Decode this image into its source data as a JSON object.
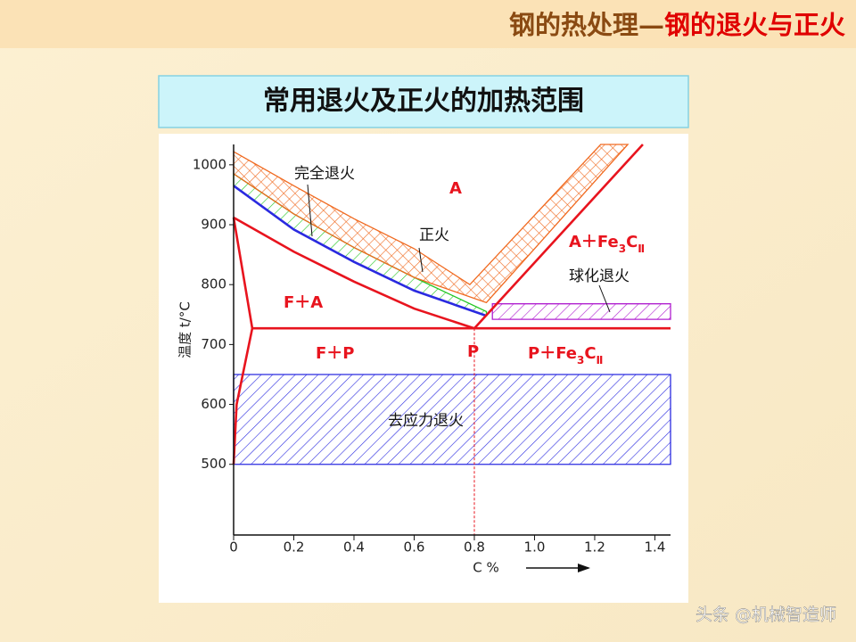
{
  "header": {
    "title_main": "钢的热处理—",
    "title_sub": "钢的退火与正火"
  },
  "slide_title": "常用退火及正火的加热范围",
  "chart_data": {
    "type": "phase-diagram",
    "xlabel": "C %",
    "ylabel": "温度 t/°C",
    "xlim": [
      0,
      1.452
    ],
    "ylim": [
      382,
      1034
    ],
    "xticks": [
      0,
      0.2,
      0.4,
      0.6,
      0.8,
      {
        "value": 1,
        "label": "1.0"
      },
      1.2,
      1.4
    ],
    "yticks": [
      500,
      600,
      700,
      800,
      900,
      1000
    ],
    "regions": [
      {
        "label": "去应力退火",
        "color": "#2a2ae0",
        "pattern": "hatch",
        "x": [
          0,
          1.452,
          1.452,
          0
        ],
        "y": [
          500,
          500,
          650,
          650
        ]
      },
      {
        "label": "球化退火",
        "color": "#b020d0",
        "pattern": "hatch",
        "x": [
          0.86,
          1.452,
          1.452,
          0.86
        ],
        "y": [
          742,
          742,
          768,
          768
        ]
      },
      {
        "label": "完全退火",
        "color": "#22c622",
        "pattern": "hatch",
        "x": [
          0,
          0.2,
          0.4,
          0.6,
          0.84,
          0.84,
          0.6,
          0.4,
          0.2,
          0
        ],
        "y": [
          985,
          918,
          862,
          812,
          755,
          748,
          790,
          838,
          892,
          965
        ]
      },
      {
        "label": "正火",
        "color": "#f06a20",
        "pattern": "cross",
        "x": [
          0,
          0.2,
          0.4,
          0.6,
          0.785,
          1.22,
          1.31,
          0.84,
          0.6,
          0.4,
          0.2,
          0
        ],
        "y": [
          1022,
          965,
          910,
          860,
          800,
          1034,
          1034,
          770,
          812,
          862,
          918,
          985
        ]
      }
    ],
    "lines": [
      {
        "color": "#2a2ae0",
        "x": [
          0,
          0.2,
          0.4,
          0.6,
          0.84
        ],
        "y": [
          965,
          892,
          838,
          790,
          748
        ]
      },
      {
        "color": "#e8141e",
        "x": [
          0,
          0.2,
          0.4,
          0.6,
          0.8
        ],
        "y": [
          912,
          855,
          805,
          760,
          727
        ]
      },
      {
        "color": "#e8141e",
        "x": [
          0,
          0.062,
          0.01,
          0
        ],
        "y": [
          912,
          727,
          600,
          500
        ]
      },
      {
        "color": "#e8141e",
        "x": [
          0.062,
          1.452
        ],
        "y": [
          727,
          727
        ]
      },
      {
        "color": "#e8141e",
        "x": [
          0.8,
          1.36
        ],
        "y": [
          727,
          1034
        ]
      },
      {
        "color": "#e8141e",
        "dashed": true,
        "x": [
          0.8,
          0.8
        ],
        "y": [
          727,
          382
        ]
      }
    ],
    "phase_labels": [
      [
        "A"
      ],
      [
        "A＋Fe",
        "3",
        "C",
        "Ⅱ"
      ],
      [
        "F＋A"
      ],
      [
        "F＋P"
      ],
      [
        "P"
      ],
      [
        "P＋Fe",
        "3",
        "C",
        "Ⅱ"
      ]
    ]
  },
  "watermark": "头条 @机械智造师"
}
